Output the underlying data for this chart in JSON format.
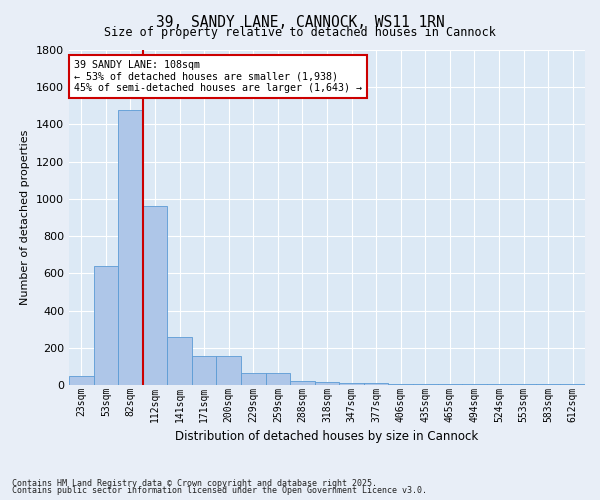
{
  "title": "39, SANDY LANE, CANNOCK, WS11 1RN",
  "subtitle": "Size of property relative to detached houses in Cannock",
  "xlabel": "Distribution of detached houses by size in Cannock",
  "ylabel": "Number of detached properties",
  "categories": [
    "23sqm",
    "53sqm",
    "82sqm",
    "112sqm",
    "141sqm",
    "171sqm",
    "200sqm",
    "229sqm",
    "259sqm",
    "288sqm",
    "318sqm",
    "347sqm",
    "377sqm",
    "406sqm",
    "435sqm",
    "465sqm",
    "494sqm",
    "524sqm",
    "553sqm",
    "583sqm",
    "612sqm"
  ],
  "values": [
    50,
    638,
    1480,
    960,
    258,
    155,
    155,
    65,
    65,
    20,
    15,
    10,
    10,
    5,
    5,
    5,
    5,
    5,
    5,
    5,
    5
  ],
  "bar_color": "#aec6e8",
  "bar_edge_color": "#5b9bd5",
  "vline_color": "#cc0000",
  "annotation_text": "39 SANDY LANE: 108sqm\n← 53% of detached houses are smaller (1,938)\n45% of semi-detached houses are larger (1,643) →",
  "annotation_box_color": "#ffffff",
  "annotation_box_edge": "#cc0000",
  "background_color": "#dce9f5",
  "grid_color": "#ffffff",
  "fig_bg_color": "#e8eef7",
  "ylim": [
    0,
    1800
  ],
  "yticks": [
    0,
    200,
    400,
    600,
    800,
    1000,
    1200,
    1400,
    1600,
    1800
  ],
  "footnote1": "Contains HM Land Registry data © Crown copyright and database right 2025.",
  "footnote2": "Contains public sector information licensed under the Open Government Licence v3.0."
}
